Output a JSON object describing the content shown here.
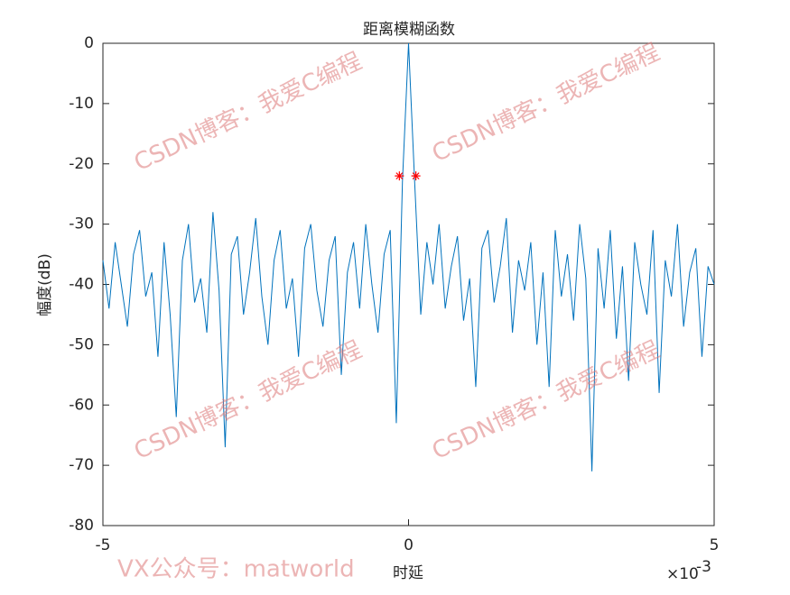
{
  "chart_data": {
    "type": "line",
    "title": "距离模糊函数",
    "xlabel": "时延",
    "ylabel": "幅度(dB)",
    "x_multiplier": {
      "base": "×10",
      "exponent": "-3"
    },
    "xlim": [
      -5,
      5
    ],
    "xticks": [
      -5,
      0,
      5
    ],
    "ylim": [
      -80,
      0
    ],
    "yticks": [
      -80,
      -70,
      -60,
      -50,
      -40,
      -30,
      -20,
      -10,
      0
    ],
    "grid": false,
    "series": [
      {
        "color": "#0072bd",
        "marker": "none",
        "x": [
          -5.0,
          -4.9,
          -4.8,
          -4.7,
          -4.6,
          -4.5,
          -4.4,
          -4.3,
          -4.2,
          -4.1,
          -4.0,
          -3.9,
          -3.8,
          -3.7,
          -3.6,
          -3.5,
          -3.4,
          -3.3,
          -3.2,
          -3.1,
          -3.0,
          -2.9,
          -2.8,
          -2.7,
          -2.6,
          -2.5,
          -2.4,
          -2.3,
          -2.2,
          -2.1,
          -2.0,
          -1.9,
          -1.8,
          -1.7,
          -1.6,
          -1.5,
          -1.4,
          -1.3,
          -1.2,
          -1.1,
          -1.0,
          -0.9,
          -0.8,
          -0.7,
          -0.6,
          -0.5,
          -0.4,
          -0.3,
          -0.2,
          -0.1,
          0.0,
          0.1,
          0.2,
          0.3,
          0.4,
          0.5,
          0.6,
          0.7,
          0.8,
          0.9,
          1.0,
          1.1,
          1.2,
          1.3,
          1.4,
          1.5,
          1.6,
          1.7,
          1.8,
          1.9,
          2.0,
          2.1,
          2.2,
          2.3,
          2.4,
          2.5,
          2.6,
          2.7,
          2.8,
          2.9,
          3.0,
          3.1,
          3.2,
          3.3,
          3.4,
          3.5,
          3.6,
          3.7,
          3.8,
          3.9,
          4.0,
          4.1,
          4.2,
          4.3,
          4.4,
          4.5,
          4.6,
          4.7,
          4.8,
          4.9,
          5.0
        ],
        "values": [
          -36,
          -44,
          -33,
          -40,
          -47,
          -35,
          -31,
          -42,
          -38,
          -52,
          -33,
          -45,
          -62,
          -36,
          -30,
          -43,
          -39,
          -48,
          -28,
          -41,
          -67,
          -35,
          -32,
          -45,
          -38,
          -29,
          -42,
          -50,
          -36,
          -31,
          -44,
          -39,
          -52,
          -34,
          -30,
          -41,
          -47,
          -36,
          -32,
          -55,
          -38,
          -33,
          -44,
          -30,
          -40,
          -48,
          -35,
          -31,
          -63,
          -23,
          0,
          -23,
          -45,
          -33,
          -40,
          -30,
          -44,
          -37,
          -32,
          -46,
          -39,
          -57,
          -34,
          -31,
          -43,
          -37,
          -29,
          -48,
          -36,
          -41,
          -33,
          -50,
          -38,
          -57,
          -31,
          -42,
          -35,
          -46,
          -30,
          -39,
          -71,
          -34,
          -44,
          -31,
          -49,
          -37,
          -56,
          -33,
          -40,
          -45,
          -31,
          -58,
          -36,
          -42,
          -30,
          -47,
          -38,
          -34,
          -52,
          -37,
          -40
        ]
      },
      {
        "color": "#ff0000",
        "marker": "*",
        "x": [
          -0.15,
          0.12
        ],
        "values": [
          -22,
          -22
        ]
      }
    ],
    "watermarks": [
      "CSDN博客：我爱C编程",
      "CSDN博客：我爱C编程",
      "CSDN博客：我爱C编程",
      "CSDN博客：我爱C编程"
    ],
    "footer_watermark": "VX公众号：matworld"
  }
}
